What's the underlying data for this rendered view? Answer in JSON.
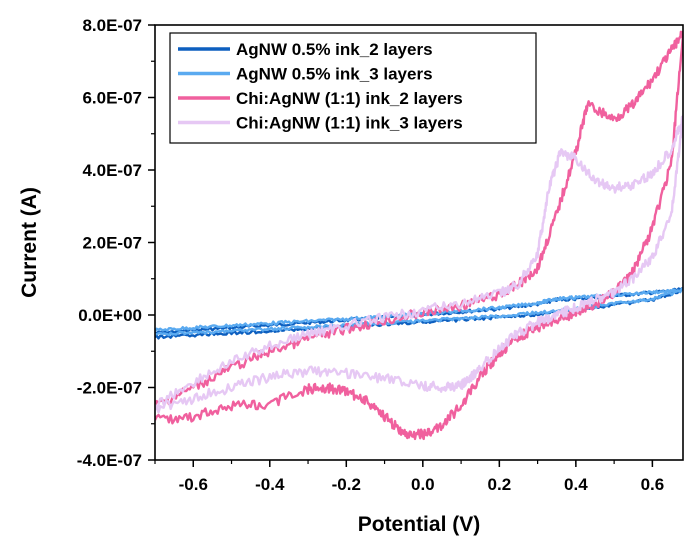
{
  "chart_data": {
    "type": "line",
    "title": "",
    "xlabel": "Potential (V)",
    "ylabel": "Current (A)",
    "xlim": [
      -0.7,
      0.68
    ],
    "ylim": [
      -4e-07,
      8e-07
    ],
    "x_ticks": [
      -0.6,
      -0.4,
      -0.2,
      0.0,
      0.2,
      0.4,
      0.6
    ],
    "x_tick_labels": [
      "-0.6",
      "-0.4",
      "-0.2",
      "0.0",
      "0.2",
      "0.4",
      "0.6"
    ],
    "y_ticks": [
      -4e-07,
      -2e-07,
      0.0,
      2e-07,
      4e-07,
      6e-07,
      8e-07
    ],
    "y_tick_labels": [
      "-4.0E-07",
      "-2.0E-07",
      "0.0E+00",
      "2.0E-07",
      "4.0E-07",
      "6.0E-07",
      "8.0E-07"
    ],
    "grid": false,
    "legend_position": "top-left",
    "series": [
      {
        "name": "AgNW 0.5% ink_2 layers",
        "color": "#0d5fbf",
        "x": [
          -0.7,
          -0.6,
          -0.5,
          -0.4,
          -0.3,
          -0.2,
          -0.1,
          0.0,
          0.1,
          0.2,
          0.3,
          0.35,
          0.4,
          0.5,
          0.6,
          0.68,
          0.6,
          0.5,
          0.4,
          0.3,
          0.2,
          0.1,
          0.0,
          -0.1,
          -0.2,
          -0.3,
          -0.4,
          -0.5,
          -0.6,
          -0.7
        ],
        "y": [
          -5e-08,
          -4.2e-08,
          -3.5e-08,
          -2.8e-08,
          -2.1e-08,
          -1.4e-08,
          -7e-09,
          1e-09,
          9e-09,
          1.7e-08,
          3e-08,
          4.2e-08,
          4.5e-08,
          5.3e-08,
          6.2e-08,
          7e-08,
          4.2e-08,
          2.8e-08,
          1.3e-08,
          2e-09,
          -6e-09,
          -1.3e-08,
          -1.9e-08,
          -2.5e-08,
          -3.2e-08,
          -3.8e-08,
          -4.4e-08,
          -5e-08,
          -5.6e-08,
          -6.1e-08
        ]
      },
      {
        "name": "AgNW 0.5% ink_3 layers",
        "color": "#5aaaf0",
        "x": [
          -0.7,
          -0.6,
          -0.5,
          -0.4,
          -0.3,
          -0.2,
          -0.1,
          0.0,
          0.1,
          0.2,
          0.3,
          0.35,
          0.4,
          0.5,
          0.6,
          0.68,
          0.6,
          0.5,
          0.4,
          0.3,
          0.2,
          0.1,
          0.0,
          -0.1,
          -0.2,
          -0.3,
          -0.4,
          -0.5,
          -0.6,
          -0.7
        ],
        "y": [
          -4.2e-08,
          -3.5e-08,
          -2.9e-08,
          -2.3e-08,
          -1.7e-08,
          -1.1e-08,
          -4e-09,
          3e-09,
          1.1e-08,
          2e-08,
          3.3e-08,
          4.5e-08,
          4.8e-08,
          5.5e-08,
          6.3e-08,
          6.8e-08,
          4.5e-08,
          3.1e-08,
          1.7e-08,
          6e-09,
          -3e-09,
          -1e-08,
          -1.6e-08,
          -2.2e-08,
          -2.8e-08,
          -3.4e-08,
          -3.9e-08,
          -4.4e-08,
          -4.9e-08,
          -5.3e-08
        ]
      },
      {
        "name": "Chi:AgNW (1:1) ink_2 layers",
        "color": "#f0609e",
        "x": [
          -0.7,
          -0.6,
          -0.5,
          -0.4,
          -0.3,
          -0.2,
          -0.1,
          0.0,
          0.1,
          0.2,
          0.25,
          0.3,
          0.35,
          0.4,
          0.43,
          0.5,
          0.55,
          0.6,
          0.65,
          0.68,
          0.65,
          0.6,
          0.55,
          0.5,
          0.45,
          0.4,
          0.35,
          0.3,
          0.25,
          0.2,
          0.15,
          0.1,
          0.05,
          0.0,
          -0.05,
          -0.1,
          -0.15,
          -0.2,
          -0.25,
          -0.3,
          -0.4,
          -0.5,
          -0.6,
          -0.7
        ],
        "y": [
          -2.5e-07,
          -2e-07,
          -1.45e-07,
          -1e-07,
          -6.5e-08,
          -3.8e-08,
          -1.5e-08,
          5e-09,
          2.6e-08,
          5.5e-08,
          8.5e-08,
          1.3e-07,
          2.8e-07,
          4.5e-07,
          5.8e-07,
          5.4e-07,
          5.8e-07,
          6.5e-07,
          7.3e-07,
          7.8e-07,
          4.2e-07,
          2.4e-07,
          1.2e-07,
          6e-08,
          3e-08,
          5e-09,
          -1e-08,
          -3.5e-08,
          -6e-08,
          -1.05e-07,
          -1.7e-07,
          -2.5e-07,
          -3.05e-07,
          -3.3e-07,
          -3.25e-07,
          -2.8e-07,
          -2.35e-07,
          -2.1e-07,
          -2e-07,
          -2.05e-07,
          -2.45e-07,
          -2.5e-07,
          -2.8e-07,
          -2.9e-07
        ]
      },
      {
        "name": "Chi:AgNW (1:1) ink_3 layers",
        "color": "#e6c8f4",
        "x": [
          -0.7,
          -0.6,
          -0.5,
          -0.4,
          -0.3,
          -0.2,
          -0.1,
          0.0,
          0.1,
          0.2,
          0.25,
          0.3,
          0.33,
          0.36,
          0.4,
          0.45,
          0.5,
          0.55,
          0.6,
          0.65,
          0.68,
          0.65,
          0.6,
          0.55,
          0.5,
          0.45,
          0.4,
          0.35,
          0.3,
          0.25,
          0.2,
          0.15,
          0.12,
          0.1,
          0.05,
          0.0,
          -0.1,
          -0.2,
          -0.3,
          -0.4,
          -0.5,
          -0.6,
          -0.7
        ],
        "y": [
          -2.5e-07,
          -1.85e-07,
          -1.3e-07,
          -8.5e-08,
          -5.2e-08,
          -2.8e-08,
          -8e-09,
          1.2e-08,
          3.2e-08,
          5.8e-08,
          8.5e-08,
          1.7e-07,
          3.5e-07,
          4.5e-07,
          4.3e-07,
          3.7e-07,
          3.5e-07,
          3.6e-07,
          3.9e-07,
          4.6e-07,
          5.4e-07,
          2.8e-07,
          1.6e-07,
          1e-07,
          6.5e-08,
          4e-08,
          2e-08,
          0,
          -2e-08,
          -5e-08,
          -9e-08,
          -1.45e-07,
          -1.8e-07,
          -1.95e-07,
          -2e-07,
          -1.95e-07,
          -1.75e-07,
          -1.6e-07,
          -1.55e-07,
          -1.7e-07,
          -2e-07,
          -2.3e-07,
          -2.6e-07
        ]
      }
    ]
  }
}
